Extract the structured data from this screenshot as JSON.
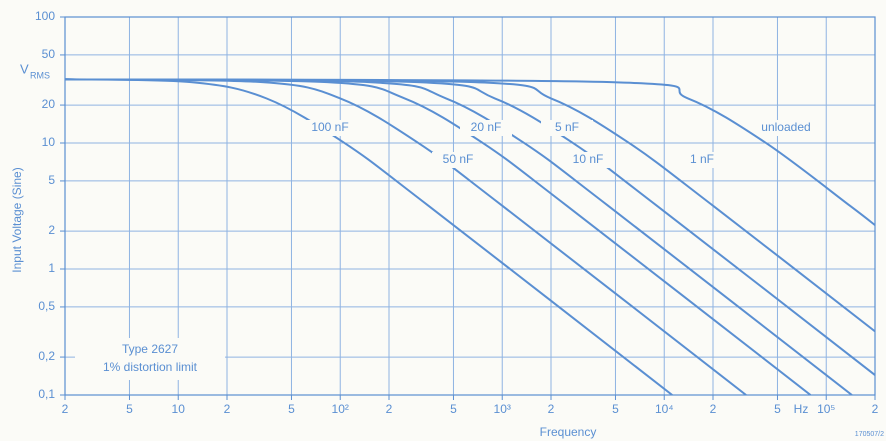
{
  "chart_data": {
    "type": "line",
    "y_unit": "V",
    "y_unit_sub": "RMS",
    "y_label": "Input Voltage (Sine)",
    "x_label": "Frequency",
    "x_unit": "Hz",
    "note_lines": [
      "Type 2627",
      "1% distortion limit"
    ],
    "figure_id": "170507/2",
    "log_x": true,
    "log_y": true,
    "grid": true,
    "color": "#5a8fd2",
    "xlim": [
      2,
      200000
    ],
    "ylim": [
      0.1,
      100
    ],
    "xticks": [
      2,
      5,
      10,
      {
        "value": 20,
        "label": "2"
      },
      {
        "value": 50,
        "label": "5"
      },
      {
        "value": 100,
        "label": "10²"
      },
      {
        "value": 200,
        "label": "2"
      },
      {
        "value": 500,
        "label": "5"
      },
      {
        "value": 1000,
        "label": "10³"
      },
      {
        "value": 2000,
        "label": "2"
      },
      {
        "value": 5000,
        "label": "5"
      },
      {
        "value": 10000,
        "label": "10⁴"
      },
      {
        "value": 20000,
        "label": "2"
      },
      {
        "value": 50000,
        "label": "5"
      },
      {
        "value": 100000,
        "label": "10⁵"
      },
      {
        "value": 200000,
        "label": "2"
      }
    ],
    "yticks": [
      {
        "value": 0.1,
        "label": "0,1"
      },
      {
        "value": 0.2,
        "label": "0,2"
      },
      {
        "value": 0.5,
        "label": "0,5"
      },
      1,
      2,
      5,
      10,
      20,
      50,
      100
    ],
    "series": [
      {
        "name": "100 nF",
        "x": [
          2,
          12,
          35,
          105,
          350,
          11200
        ],
        "values": [
          32,
          30.4,
          22.6,
          10.1,
          3.18,
          0.1
        ]
      },
      {
        "name": "50 nF",
        "x": [
          2,
          33,
          100,
          300,
          1000,
          32000
        ],
        "values": [
          32,
          30.4,
          22.6,
          10.1,
          3.18,
          0.1
        ]
      },
      {
        "name": "20 nF",
        "x": [
          2,
          83,
          250,
          750,
          2500,
          80000
        ],
        "values": [
          32,
          30.4,
          22.6,
          10.1,
          3.18,
          0.1
        ]
      },
      {
        "name": "10 nF",
        "x": [
          2,
          150,
          450,
          1350,
          4500,
          144000
        ],
        "values": [
          32,
          30.4,
          22.6,
          10.1,
          3.18,
          0.1
        ]
      },
      {
        "name": "5 nF",
        "x": [
          2,
          300,
          900,
          2700,
          9000,
          200000
        ],
        "values": [
          32,
          30.4,
          22.6,
          10.1,
          3.18,
          0.144
        ]
      },
      {
        "name": "1 nF",
        "x": [
          2,
          670,
          2000,
          6000,
          20000,
          200000
        ],
        "values": [
          32,
          30.4,
          22.6,
          10.1,
          3.18,
          0.32
        ]
      },
      {
        "name": "unloaded",
        "x": [
          2,
          4670,
          14000,
          42000,
          140000,
          200000
        ],
        "values": [
          32,
          30.4,
          22.6,
          10.1,
          3.18,
          2.23
        ]
      }
    ]
  }
}
